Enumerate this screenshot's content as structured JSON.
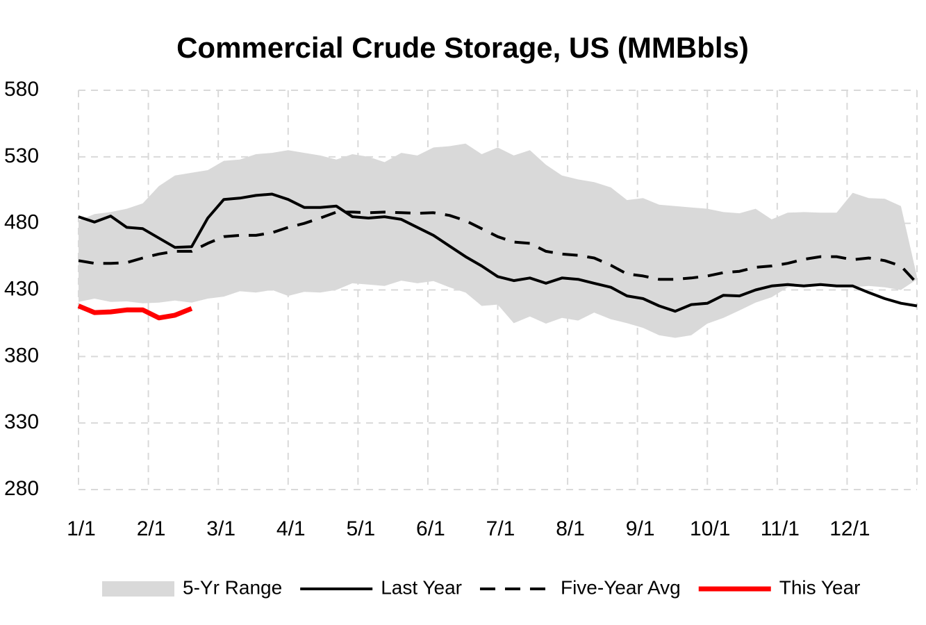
{
  "chart_data": {
    "type": "line",
    "title": "Commercial Crude Storage, US (MMBbls)",
    "x": [
      0,
      0.23,
      0.46,
      0.69,
      0.92,
      1.15,
      1.38,
      1.62,
      1.85,
      2.08,
      2.31,
      2.54,
      2.77,
      3,
      3.23,
      3.46,
      3.69,
      3.92,
      4.15,
      4.38,
      4.62,
      4.85,
      5.08,
      5.31,
      5.54,
      5.77,
      6,
      6.23,
      6.46,
      6.69,
      6.92,
      7.15,
      7.38,
      7.62,
      7.85,
      8.08,
      8.31,
      8.54,
      8.77,
      9,
      9.23,
      9.46,
      9.69,
      9.92,
      10.15,
      10.38,
      10.62,
      10.85,
      11.08,
      11.31,
      11.54,
      11.77,
      12
    ],
    "xlim": [
      0,
      12
    ],
    "xticks": [
      {
        "value": 0,
        "label": "1/1"
      },
      {
        "value": 1,
        "label": "2/1"
      },
      {
        "value": 2,
        "label": "3/1"
      },
      {
        "value": 3,
        "label": "4/1"
      },
      {
        "value": 4,
        "label": "5/1"
      },
      {
        "value": 5,
        "label": "6/1"
      },
      {
        "value": 6,
        "label": "7/1"
      },
      {
        "value": 7,
        "label": "8/1"
      },
      {
        "value": 8,
        "label": "9/1"
      },
      {
        "value": 9,
        "label": "10/1"
      },
      {
        "value": 10,
        "label": "11/1"
      },
      {
        "value": 11,
        "label": "12/1"
      }
    ],
    "ylim": [
      280,
      580
    ],
    "yticks": [
      280,
      330,
      380,
      430,
      480,
      530,
      580
    ],
    "grid": true,
    "legend": "bottom",
    "series": [
      {
        "name": "5-Yr Range",
        "type": "range",
        "color": "#d9d9d9",
        "upper": [
          482,
          487,
          488.5,
          491,
          495,
          508,
          516,
          518,
          520,
          527,
          528,
          532,
          533,
          535,
          533,
          531,
          528,
          532,
          530,
          526,
          533,
          531,
          537,
          538,
          540,
          532,
          537,
          531,
          535,
          524,
          516,
          513,
          511,
          507,
          497.5,
          499,
          494,
          493,
          492,
          491,
          488.5,
          487.6,
          491,
          483,
          488,
          488.5,
          488,
          488,
          503,
          499,
          498.5,
          493,
          440
        ],
        "lower": [
          421,
          423.5,
          421,
          421.4,
          420,
          420.5,
          422,
          420.5,
          423.5,
          425,
          429,
          428,
          430,
          425.5,
          428.6,
          428,
          430,
          435,
          434,
          433,
          437,
          435,
          436.6,
          432,
          428,
          418,
          419,
          405,
          410,
          404.7,
          409,
          407,
          413,
          408,
          405,
          401.5,
          396,
          394,
          396,
          404.7,
          409,
          414.6,
          420.5,
          424.5,
          432,
          433,
          434,
          433,
          432,
          433,
          432,
          430,
          438
        ]
      },
      {
        "name": "Last Year",
        "color": "#000000",
        "style": "solid",
        "values": [
          485,
          481,
          485.5,
          477,
          476,
          469,
          462,
          462.5,
          484,
          498,
          499,
          501,
          502,
          498,
          492,
          492,
          493,
          485,
          484,
          485,
          483,
          477,
          471,
          463,
          455,
          448,
          440,
          437,
          439,
          435,
          439,
          438,
          435,
          432,
          425.5,
          423.5,
          418,
          414,
          419,
          420,
          426,
          425.5,
          430,
          433,
          434,
          433,
          434,
          433,
          433,
          428,
          423.5,
          420,
          418
        ]
      },
      {
        "name": "Five-Year Avg",
        "color": "#000000",
        "style": "dashed",
        "values": [
          452,
          450,
          450,
          450.5,
          454,
          457,
          459,
          459,
          465,
          470,
          471,
          471,
          473,
          477,
          480,
          484,
          488.5,
          488.5,
          488,
          488.5,
          488,
          487.6,
          488,
          486,
          482,
          476,
          470,
          466,
          465,
          459,
          457,
          456,
          454,
          448.5,
          442,
          440.5,
          438,
          438,
          439,
          440.5,
          443,
          444,
          447,
          448,
          450,
          453,
          455,
          455,
          452.7,
          454,
          452,
          448,
          435
        ]
      },
      {
        "name": "This Year",
        "color": "#ff0000",
        "style": "thick",
        "values": [
          418,
          413,
          413.5,
          415,
          415,
          409,
          411,
          416,
          null,
          null,
          null,
          null,
          null,
          null,
          null,
          null,
          null,
          null,
          null,
          null,
          null,
          null,
          null,
          null,
          null,
          null,
          null,
          null,
          null,
          null,
          null,
          null,
          null,
          null,
          null,
          null,
          null,
          null,
          null,
          null,
          null,
          null,
          null,
          null,
          null,
          null,
          null,
          null,
          null,
          null,
          null,
          null,
          null
        ]
      }
    ]
  }
}
